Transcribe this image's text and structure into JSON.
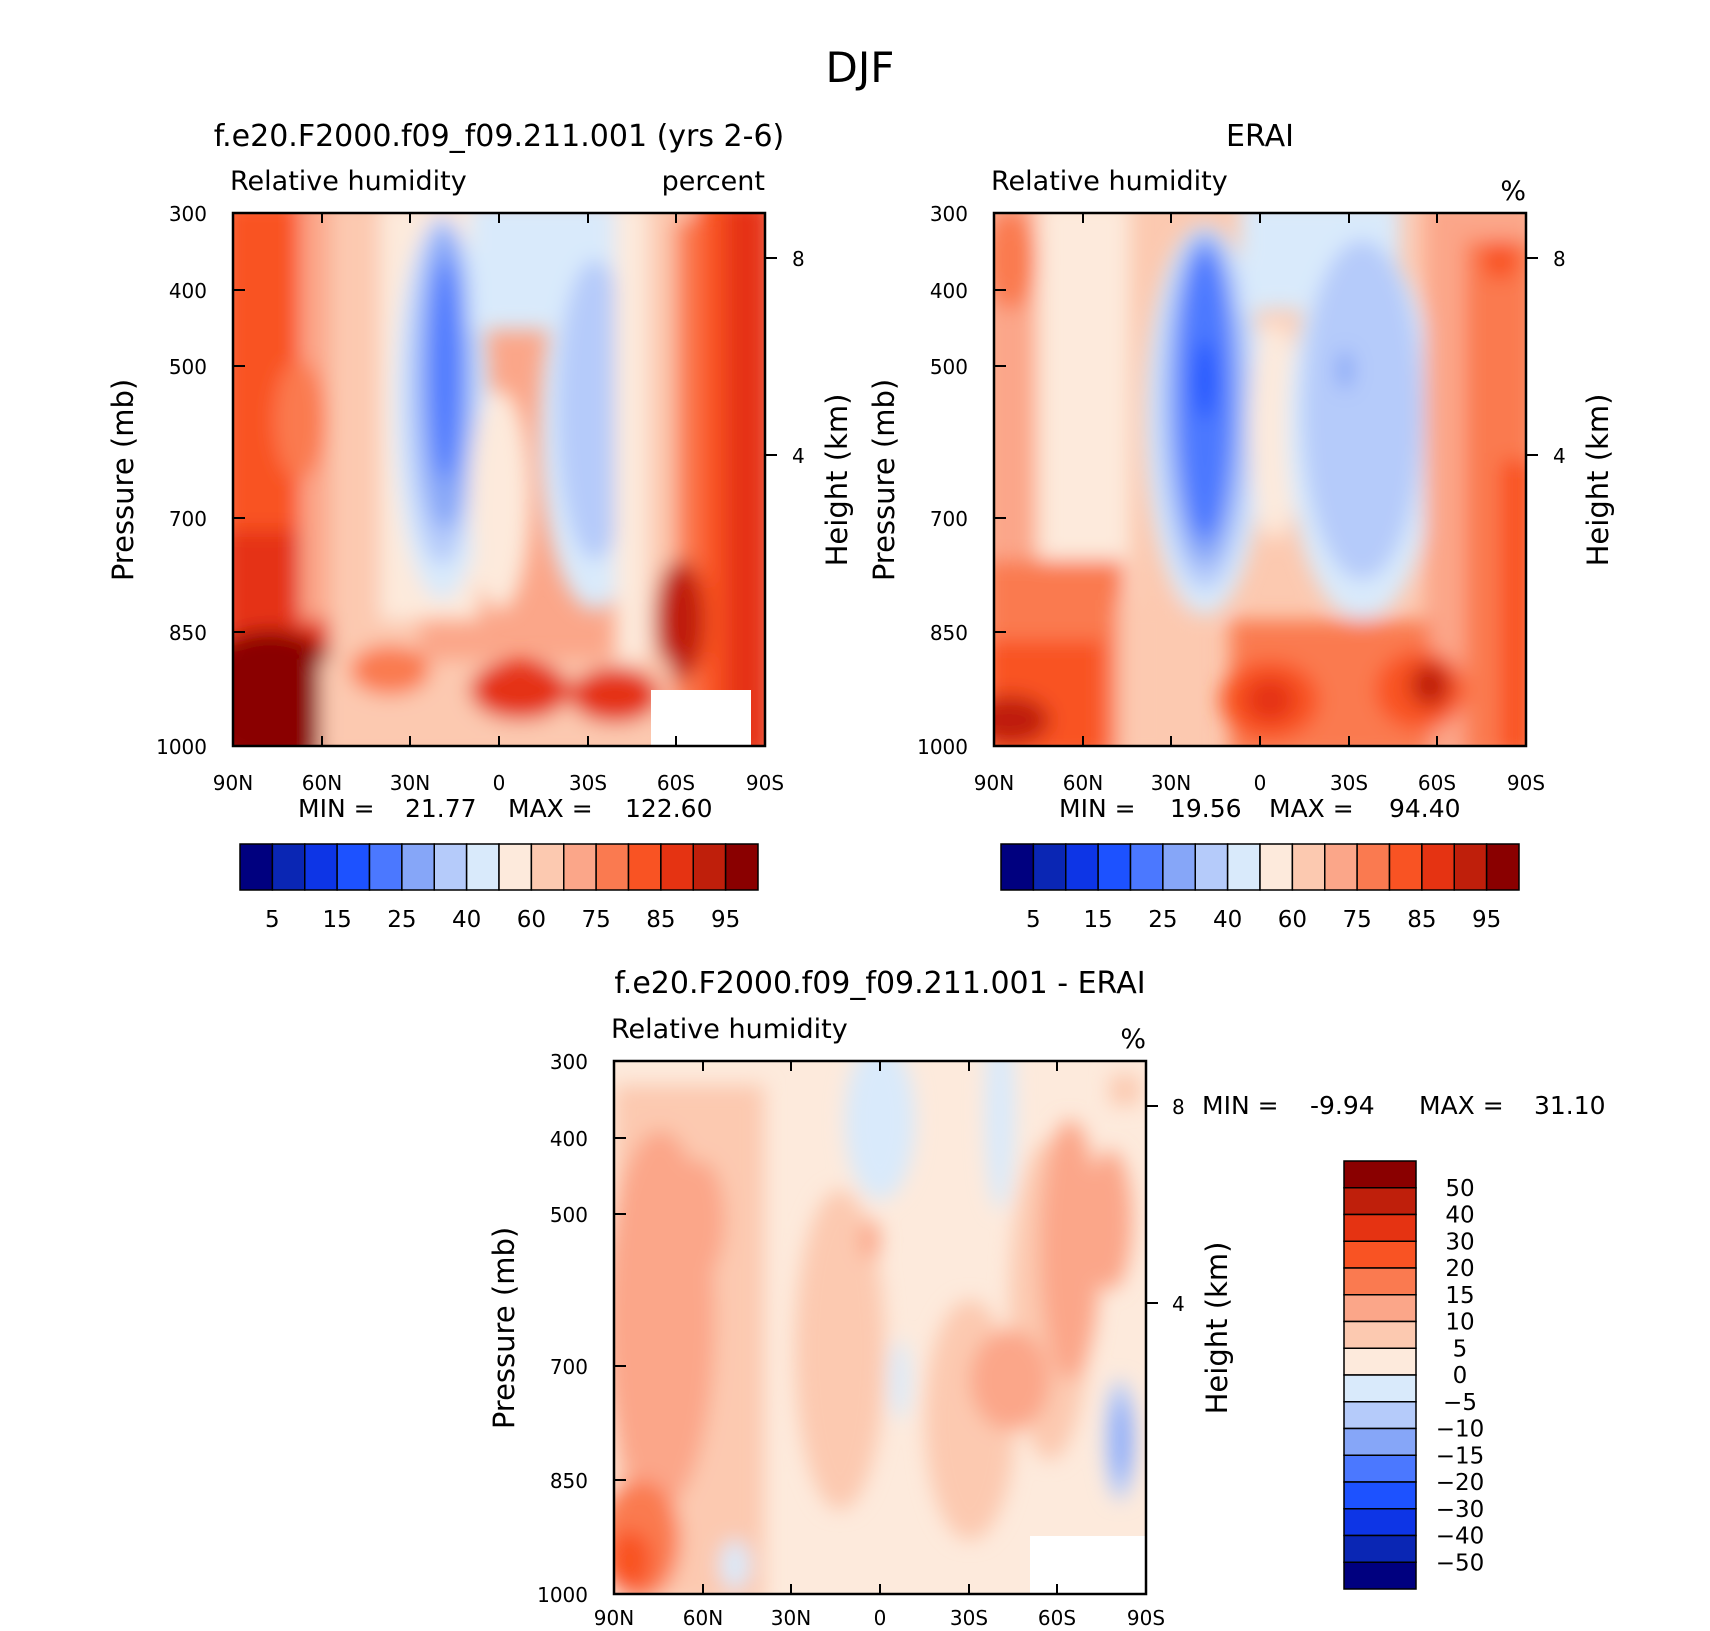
{
  "figure_title": "DJF",
  "colors": {
    "absolute_palette": [
      "#00007f",
      "#0a26b4",
      "#0d35e6",
      "#1d52ff",
      "#4b78ff",
      "#86a6f8",
      "#b5cbfa",
      "#d9eafb",
      "#fdeadc",
      "#fcc9b0",
      "#fba689",
      "#fa7a50",
      "#f95323",
      "#e53312",
      "#bf1f0b",
      "#8a0000"
    ],
    "diff_palette": [
      "#00007f",
      "#0a26b4",
      "#0d35e6",
      "#1d52ff",
      "#4b78ff",
      "#86a6f8",
      "#b5cbfa",
      "#d9eafb",
      "#fdeadc",
      "#fcc9b0",
      "#fba689",
      "#fa7a50",
      "#f95323",
      "#e53312",
      "#bf1f0b",
      "#8a0000"
    ]
  },
  "chart_data": [
    {
      "type": "heatmap",
      "id": "model",
      "title": "f.e20.F2000.f09_f09.211.001 (yrs 2-6)",
      "left_label": "Relative humidity",
      "right_label": "percent",
      "ylabel": "Pressure (mb)",
      "y2label": "Height (km)",
      "x_ticks": [
        "90N",
        "60N",
        "30N",
        "0",
        "30S",
        "60S",
        "90S"
      ],
      "y_ticks": [
        300,
        400,
        500,
        700,
        850,
        1000
      ],
      "y2_ticks": [
        8,
        4
      ],
      "ylim": [
        1000,
        300
      ],
      "y_scale": "log",
      "min_label": "MIN =",
      "min_value": "21.77",
      "max_label": "MAX =",
      "max_value": "122.60",
      "colorbar_labels": [
        "5",
        "15",
        "25",
        "40",
        "60",
        "75",
        "85",
        "95"
      ],
      "legend_position": "bottom"
    },
    {
      "type": "heatmap",
      "id": "obs",
      "title": "ERAI",
      "left_label": "Relative humidity",
      "right_label": "%",
      "ylabel": "Pressure (mb)",
      "y2label": "Height (km)",
      "x_ticks": [
        "90N",
        "60N",
        "30N",
        "0",
        "30S",
        "60S",
        "90S"
      ],
      "y_ticks": [
        300,
        400,
        500,
        700,
        850,
        1000
      ],
      "y2_ticks": [
        8,
        4
      ],
      "ylim": [
        1000,
        300
      ],
      "y_scale": "log",
      "min_label": "MIN =",
      "min_value": "19.56",
      "max_label": "MAX =",
      "max_value": "94.40",
      "colorbar_labels": [
        "5",
        "15",
        "25",
        "40",
        "60",
        "75",
        "85",
        "95"
      ],
      "legend_position": "bottom"
    },
    {
      "type": "heatmap",
      "id": "diff",
      "title": "f.e20.F2000.f09_f09.211.001 - ERAI",
      "left_label": "Relative humidity",
      "right_label": "%",
      "ylabel": "Pressure (mb)",
      "y2label": "Height (km)",
      "x_ticks": [
        "90N",
        "60N",
        "30N",
        "0",
        "30S",
        "60S",
        "90S"
      ],
      "y_ticks": [
        300,
        400,
        500,
        700,
        850,
        1000
      ],
      "y2_ticks": [
        8,
        4
      ],
      "ylim": [
        1000,
        300
      ],
      "y_scale": "log",
      "min_label": "MIN =",
      "min_value": "-9.94",
      "max_label": "MAX =",
      "max_value": "31.10",
      "colorbar_labels": [
        "50",
        "40",
        "30",
        "20",
        "15",
        "10",
        "5",
        "0",
        "-5",
        "-10",
        "-15",
        "-20",
        "-30",
        "-40",
        "-50"
      ],
      "legend_position": "right"
    }
  ]
}
